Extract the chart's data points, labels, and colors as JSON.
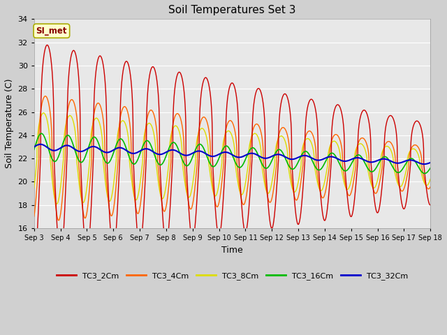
{
  "title": "Soil Temperatures Set 3",
  "xlabel": "Time",
  "ylabel": "Soil Temperature (C)",
  "xlim": [
    0,
    15
  ],
  "ylim": [
    16,
    34
  ],
  "yticks": [
    16,
    18,
    20,
    22,
    24,
    26,
    28,
    30,
    32,
    34
  ],
  "xtick_labels": [
    "Sep 3",
    "Sep 4",
    "Sep 5",
    "Sep 6",
    "Sep 7",
    "Sep 8",
    "Sep 9",
    "Sep 10",
    "Sep 11",
    "Sep 12",
    "Sep 13",
    "Sep 14",
    "Sep 15",
    "Sep 16",
    "Sep 17",
    "Sep 18"
  ],
  "fig_bg_color": "#d0d0d0",
  "axes_bg_color": "#e8e8e8",
  "grid_color": "#ffffff",
  "series_colors": {
    "TC3_2Cm": "#cc0000",
    "TC3_4Cm": "#ff6600",
    "TC3_8Cm": "#dddd00",
    "TC3_16Cm": "#00bb00",
    "TC3_32Cm": "#0000cc"
  },
  "annotation_text": "SI_met",
  "annotation_bg": "#ffffcc",
  "annotation_border": "#aaaa00",
  "annotation_color": "#880000",
  "legend_labels": [
    "TC3_2Cm",
    "TC3_4Cm",
    "TC3_8Cm",
    "TC3_16Cm",
    "TC3_32Cm"
  ]
}
